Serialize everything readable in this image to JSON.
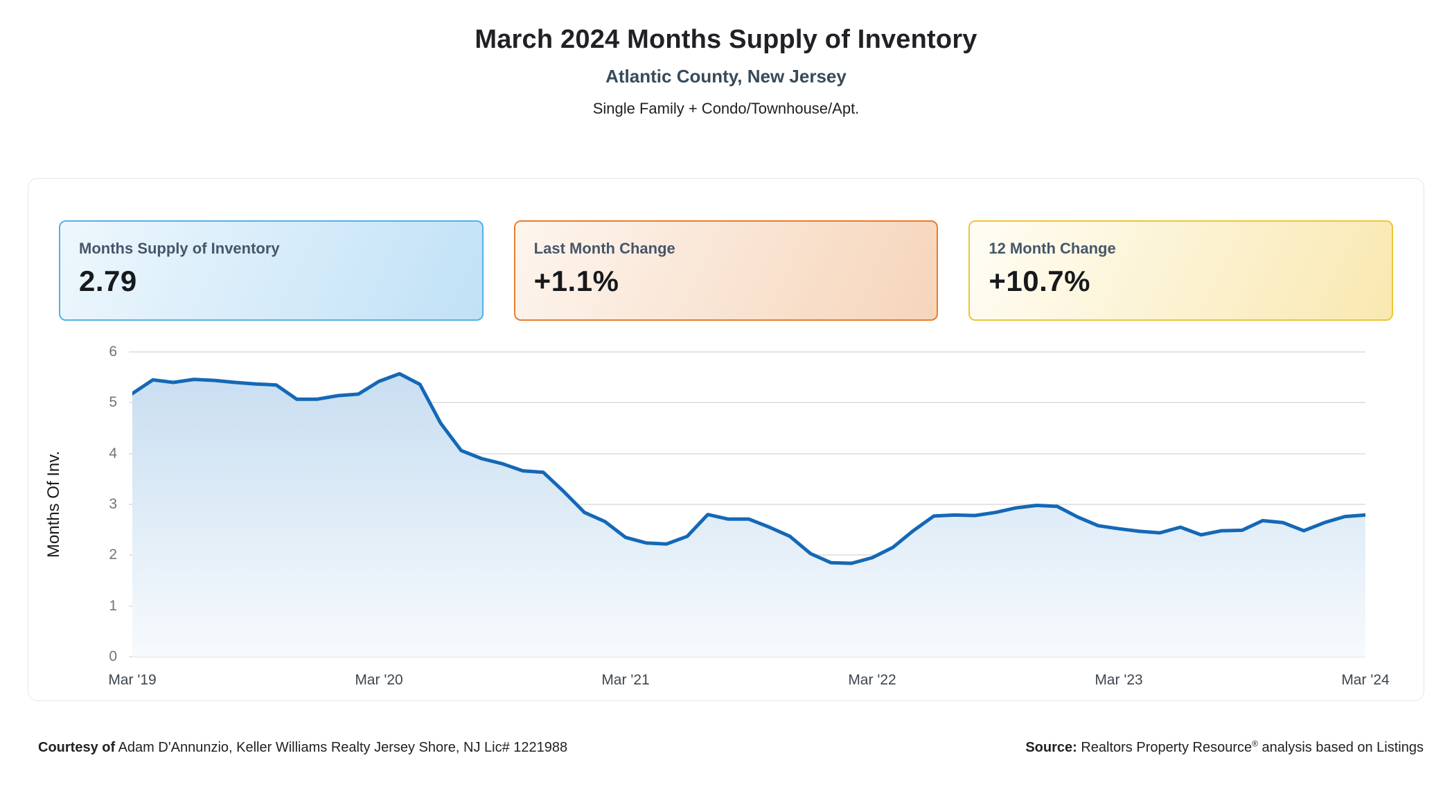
{
  "page": {
    "title": "March 2024 Months Supply of Inventory",
    "subtitle": "Atlantic County, New Jersey",
    "property_types": "Single Family + Condo/Townhouse/Apt."
  },
  "stat_cards": [
    {
      "label": "Months Supply of Inventory",
      "value": "2.79",
      "border_color": "#54b0e6",
      "bg_from": "#eef7fd",
      "bg_to": "#c0e1f6"
    },
    {
      "label": "Last Month Change",
      "value": "+1.1%",
      "border_color": "#e87d2b",
      "bg_from": "#fdf5ee",
      "bg_to": "#f6d5ba"
    },
    {
      "label": "12 Month Change",
      "value": "+10.7%",
      "border_color": "#eec533",
      "bg_from": "#fffdf5",
      "bg_to": "#f9e8b0"
    }
  ],
  "chart_data": {
    "type": "area",
    "title": "March 2024 Months Supply of Inventory",
    "xlabel": "",
    "ylabel": "Months Of Inv.",
    "ylim": [
      0,
      6
    ],
    "yticks": [
      0,
      1,
      2,
      3,
      4,
      5,
      6
    ],
    "grid": "horizontal",
    "legend": "none",
    "line_color": "#1468b6",
    "fill_top_color": "#c8def1",
    "fill_bottom_color": "#f7fafd",
    "x_tick_labels": [
      "Mar '19",
      "Mar '20",
      "Mar '21",
      "Mar '22",
      "Mar '23",
      "Mar '24"
    ],
    "x_tick_indices": [
      0,
      12,
      24,
      36,
      48,
      60
    ],
    "x": [
      "2019-03",
      "2019-04",
      "2019-05",
      "2019-06",
      "2019-07",
      "2019-08",
      "2019-09",
      "2019-10",
      "2019-11",
      "2019-12",
      "2020-01",
      "2020-02",
      "2020-03",
      "2020-04",
      "2020-05",
      "2020-06",
      "2020-07",
      "2020-08",
      "2020-09",
      "2020-10",
      "2020-11",
      "2020-12",
      "2021-01",
      "2021-02",
      "2021-03",
      "2021-04",
      "2021-05",
      "2021-06",
      "2021-07",
      "2021-08",
      "2021-09",
      "2021-10",
      "2021-11",
      "2021-12",
      "2022-01",
      "2022-02",
      "2022-03",
      "2022-04",
      "2022-05",
      "2022-06",
      "2022-07",
      "2022-08",
      "2022-09",
      "2022-10",
      "2022-11",
      "2022-12",
      "2023-01",
      "2023-02",
      "2023-03",
      "2023-04",
      "2023-05",
      "2023-06",
      "2023-07",
      "2023-08",
      "2023-09",
      "2023-10",
      "2023-11",
      "2023-12",
      "2024-01",
      "2024-02",
      "2024-03"
    ],
    "values": [
      5.18,
      5.45,
      5.4,
      5.46,
      5.44,
      5.4,
      5.37,
      5.35,
      5.07,
      5.07,
      5.14,
      5.17,
      5.42,
      5.57,
      5.36,
      4.6,
      4.06,
      3.9,
      3.8,
      3.66,
      3.63,
      3.25,
      2.84,
      2.66,
      2.35,
      2.24,
      2.22,
      2.37,
      2.8,
      2.71,
      2.71,
      2.55,
      2.37,
      2.03,
      1.85,
      1.84,
      1.95,
      2.15,
      2.48,
      2.77,
      2.79,
      2.78,
      2.84,
      2.93,
      2.98,
      2.96,
      2.75,
      2.58,
      2.52,
      2.47,
      2.44,
      2.55,
      2.4,
      2.48,
      2.49,
      2.68,
      2.64,
      2.48,
      2.64,
      2.76,
      2.79
    ]
  },
  "footer": {
    "courtesy_label": "Courtesy of",
    "courtesy_text": " Adam D'Annunzio, Keller Williams Realty Jersey Shore, NJ Lic# 1221988",
    "source_label": "Source:",
    "source_name": " Realtors Property Resource",
    "reg_mark": "®",
    "source_suffix": " analysis based on Listings"
  }
}
